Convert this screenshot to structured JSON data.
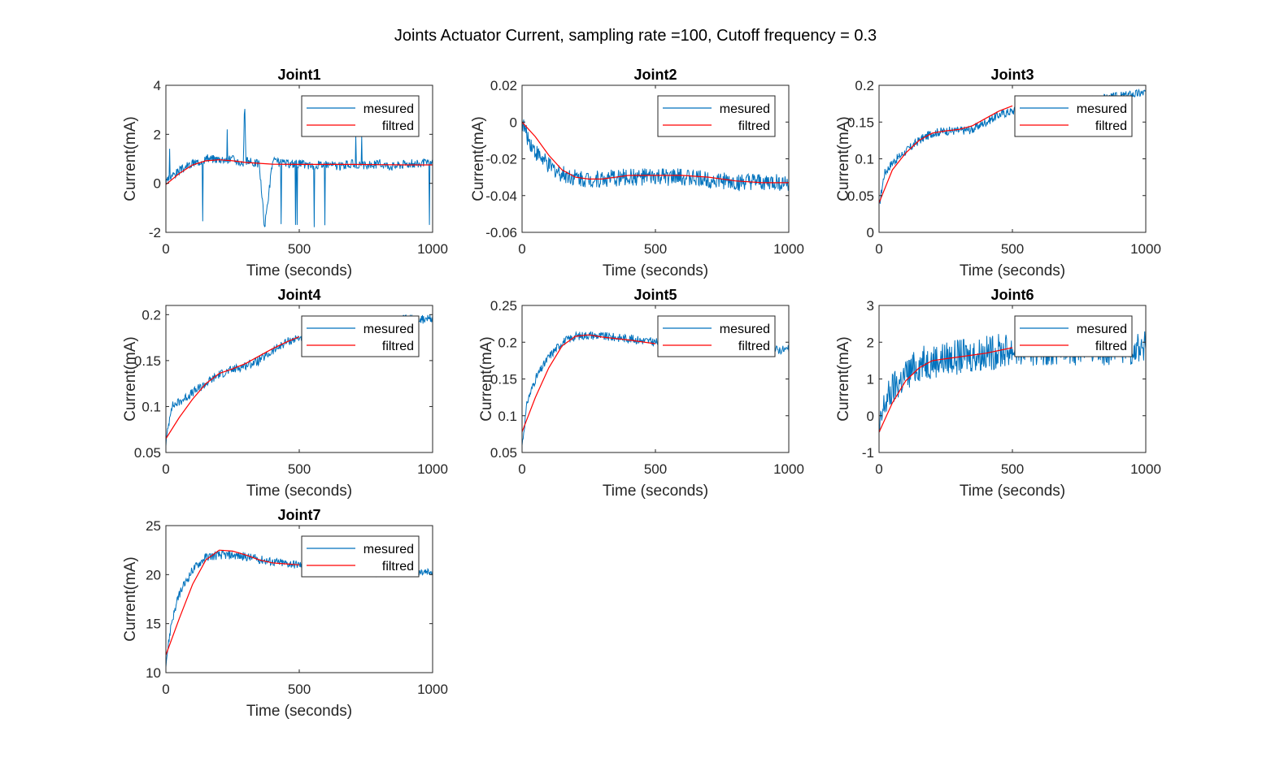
{
  "figure": {
    "title": "Joints Actuator Current, sampling rate =100, Cutoff frequency = 0.3"
  },
  "colors": {
    "measured": "#0072BD",
    "filtered": "#FF0000",
    "axes": "#262626"
  },
  "chart_data": [
    {
      "type": "line",
      "title": "Joint1",
      "xlabel": "Time (seconds)",
      "ylabel": "Current(mA)",
      "xlim": [
        0,
        1000
      ],
      "ylim": [
        -2,
        4
      ],
      "xticks": [
        0,
        500,
        1000
      ],
      "yticks": [
        -2,
        0,
        2,
        4
      ],
      "legend_position": "top-right",
      "series": [
        {
          "name": "mesured",
          "x": [
            0,
            20,
            50,
            80,
            100,
            150,
            200,
            250,
            290,
            295,
            300,
            350,
            370,
            400,
            450,
            500,
            550,
            600,
            650,
            700,
            750,
            800,
            850,
            900,
            950,
            1000
          ],
          "y": [
            0.0,
            0.3,
            0.5,
            0.7,
            0.8,
            1.0,
            1.0,
            1.0,
            0.8,
            3.4,
            0.9,
            0.8,
            -1.8,
            0.9,
            0.8,
            0.8,
            0.7,
            0.8,
            0.7,
            0.8,
            0.7,
            0.8,
            0.7,
            0.8,
            0.8,
            0.8
          ]
        },
        {
          "name": "filtred",
          "x": [
            0,
            50,
            100,
            150,
            200,
            250,
            300,
            400,
            500,
            600,
            700,
            800,
            900,
            1000
          ],
          "y": [
            -0.05,
            0.4,
            0.75,
            0.92,
            0.96,
            0.92,
            0.85,
            0.78,
            0.77,
            0.77,
            0.77,
            0.76,
            0.75,
            0.75
          ]
        }
      ]
    },
    {
      "type": "line",
      "title": "Joint2",
      "xlabel": "Time (seconds)",
      "ylabel": "Current(mA)",
      "xlim": [
        0,
        1000
      ],
      "ylim": [
        -0.06,
        0.02
      ],
      "xticks": [
        0,
        500,
        1000
      ],
      "yticks": [
        -0.06,
        -0.04,
        -0.02,
        0,
        0.02
      ],
      "legend_position": "top-right",
      "series": [
        {
          "name": "mesured",
          "x": [
            0,
            20,
            50,
            100,
            150,
            200,
            250,
            300,
            400,
            500,
            600,
            700,
            800,
            900,
            1000
          ],
          "y": [
            0.0,
            -0.008,
            -0.016,
            -0.024,
            -0.028,
            -0.03,
            -0.031,
            -0.031,
            -0.03,
            -0.03,
            -0.03,
            -0.031,
            -0.033,
            -0.033,
            -0.033
          ]
        },
        {
          "name": "filtred",
          "x": [
            0,
            50,
            100,
            150,
            200,
            250,
            300,
            400,
            500,
            600,
            700,
            800,
            900,
            1000
          ],
          "y": [
            0.0,
            -0.008,
            -0.018,
            -0.026,
            -0.03,
            -0.031,
            -0.031,
            -0.029,
            -0.029,
            -0.029,
            -0.03,
            -0.032,
            -0.033,
            -0.033
          ]
        }
      ]
    },
    {
      "type": "line",
      "title": "Joint3",
      "xlabel": "Time (seconds)",
      "ylabel": "Current(mA)",
      "xlim": [
        0,
        1000
      ],
      "ylim": [
        0,
        0.2
      ],
      "xticks": [
        0,
        500,
        1000
      ],
      "yticks": [
        0,
        0.05,
        0.1,
        0.15,
        0.2
      ],
      "legend_position": "top-right",
      "series": [
        {
          "name": "mesured",
          "x": [
            0,
            20,
            50,
            100,
            150,
            200,
            250,
            300,
            350,
            400,
            450,
            500,
            600,
            700,
            800,
            900,
            1000
          ],
          "y": [
            0.035,
            0.08,
            0.095,
            0.11,
            0.125,
            0.135,
            0.138,
            0.138,
            0.14,
            0.15,
            0.16,
            0.165,
            0.172,
            0.178,
            0.18,
            0.185,
            0.19
          ]
        },
        {
          "name": "filtred",
          "x": [
            0,
            50,
            100,
            150,
            200,
            250,
            300,
            350,
            400,
            450,
            500
          ],
          "y": [
            0.04,
            0.085,
            0.108,
            0.125,
            0.135,
            0.138,
            0.14,
            0.145,
            0.155,
            0.165,
            0.172
          ]
        }
      ]
    },
    {
      "type": "line",
      "title": "Joint4",
      "xlabel": "Time (seconds)",
      "ylabel": "Current(mA)",
      "xlim": [
        0,
        1000
      ],
      "ylim": [
        0.05,
        0.21
      ],
      "xticks": [
        0,
        500,
        1000
      ],
      "yticks": [
        0.05,
        0.1,
        0.15,
        0.2
      ],
      "legend_position": "top-right",
      "series": [
        {
          "name": "mesured",
          "x": [
            0,
            20,
            50,
            100,
            150,
            200,
            250,
            300,
            350,
            400,
            450,
            500,
            600,
            700,
            800,
            900,
            1000
          ],
          "y": [
            0.06,
            0.1,
            0.105,
            0.115,
            0.125,
            0.135,
            0.14,
            0.145,
            0.15,
            0.16,
            0.17,
            0.175,
            0.182,
            0.188,
            0.192,
            0.195,
            0.195
          ]
        },
        {
          "name": "filtred",
          "x": [
            0,
            50,
            100,
            150,
            200,
            250,
            300,
            350,
            400,
            450,
            500
          ],
          "y": [
            0.065,
            0.088,
            0.108,
            0.125,
            0.136,
            0.141,
            0.147,
            0.155,
            0.163,
            0.17,
            0.176
          ]
        }
      ]
    },
    {
      "type": "line",
      "title": "Joint5",
      "xlabel": "Time (seconds)",
      "ylabel": "Current(mA)",
      "xlim": [
        0,
        1000
      ],
      "ylim": [
        0.05,
        0.25
      ],
      "xticks": [
        0,
        500,
        1000
      ],
      "yticks": [
        0.05,
        0.1,
        0.15,
        0.2,
        0.25
      ],
      "legend_position": "top-right",
      "series": [
        {
          "name": "mesured",
          "x": [
            0,
            20,
            50,
            100,
            150,
            200,
            250,
            300,
            400,
            500,
            600,
            700,
            800,
            900,
            1000
          ],
          "y": [
            0.06,
            0.12,
            0.15,
            0.18,
            0.2,
            0.208,
            0.21,
            0.208,
            0.205,
            0.2,
            0.198,
            0.195,
            0.192,
            0.19,
            0.19
          ]
        },
        {
          "name": "filtred",
          "x": [
            0,
            50,
            100,
            150,
            200,
            250,
            300,
            400,
            500
          ],
          "y": [
            0.078,
            0.125,
            0.165,
            0.195,
            0.208,
            0.21,
            0.207,
            0.203,
            0.198
          ]
        }
      ]
    },
    {
      "type": "line",
      "title": "Joint6",
      "xlabel": "Time (seconds)",
      "ylabel": "Current(mA)",
      "xlim": [
        0,
        1000
      ],
      "ylim": [
        -1,
        3
      ],
      "xticks": [
        0,
        500,
        1000
      ],
      "yticks": [
        -1,
        0,
        1,
        2,
        3
      ],
      "legend_position": "top-right",
      "series": [
        {
          "name": "mesured",
          "x": [
            0,
            20,
            50,
            100,
            150,
            200,
            250,
            300,
            400,
            500,
            600,
            700,
            800,
            900,
            1000
          ],
          "y": [
            -0.5,
            0.3,
            0.7,
            1.1,
            1.4,
            1.5,
            1.55,
            1.6,
            1.7,
            1.8,
            1.85,
            1.85,
            1.85,
            1.85,
            1.85
          ]
        },
        {
          "name": "filtred",
          "x": [
            0,
            50,
            100,
            150,
            200,
            250,
            300,
            400,
            500
          ],
          "y": [
            -0.45,
            0.35,
            0.95,
            1.3,
            1.5,
            1.55,
            1.6,
            1.7,
            1.85
          ]
        }
      ]
    },
    {
      "type": "line",
      "title": "Joint7",
      "xlabel": "Time (seconds)",
      "ylabel": "Current(mA)",
      "xlim": [
        0,
        1000
      ],
      "ylim": [
        10,
        25
      ],
      "xticks": [
        0,
        500,
        1000
      ],
      "yticks": [
        10,
        15,
        20,
        25
      ],
      "legend_position": "top-right",
      "series": [
        {
          "name": "mesured",
          "x": [
            0,
            20,
            50,
            100,
            150,
            200,
            250,
            300,
            400,
            500,
            600,
            700,
            800,
            900,
            1000
          ],
          "y": [
            11,
            15,
            18,
            20.5,
            21.8,
            22.0,
            22.0,
            21.8,
            21.3,
            21.0,
            20.6,
            20.3,
            20.2,
            20.2,
            20.2
          ]
        },
        {
          "name": "filtred",
          "x": [
            0,
            50,
            100,
            150,
            200,
            250,
            300,
            350,
            400,
            450,
            500
          ],
          "y": [
            11.8,
            15.5,
            19.0,
            21.5,
            22.5,
            22.4,
            22.0,
            21.5,
            21.2,
            21.1,
            21.0
          ]
        }
      ]
    }
  ]
}
